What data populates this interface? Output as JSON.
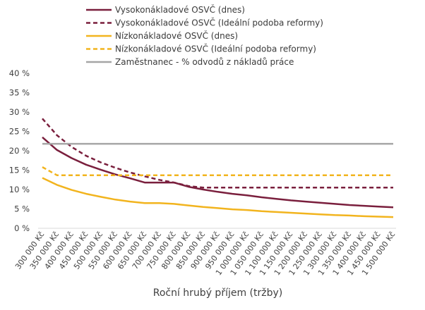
{
  "chart_data": {
    "type": "line",
    "title": "",
    "xlabel": "Roční hrubý příjem (tržby)",
    "ylabel": "",
    "ylim": [
      0,
      40
    ],
    "y_ticks": [
      "0 %",
      "5 %",
      "10 %",
      "15 %",
      "20 %",
      "25 %",
      "30 %",
      "35 %",
      "40 %"
    ],
    "grid": false,
    "legend_position": "top",
    "x": [
      "300 000 Kč",
      "350 000 Kč",
      "400 000 Kč",
      "450 000 Kč",
      "500 000 Kč",
      "550 000 Kč",
      "600 000 Kč",
      "650 000 Kč",
      "700 000 Kč",
      "750 000 Kč",
      "800 000 Kč",
      "850 000 Kč",
      "900 000 Kč",
      "950 000 Kč",
      "1 000 000 Kč",
      "1 050 000 Kč",
      "1 100 000 Kč",
      "1 150 000 Kč",
      "1 200 000 Kč",
      "1 250 000 Kč",
      "1 300 000 Kč",
      "1 350 000 Kč",
      "1 400 000 Kč",
      "1 450 000 Kč",
      "1 500 000 Kč"
    ],
    "series": [
      {
        "name": "Vysokonákladové OSVČ (dnes)",
        "color": "#7a1f3d",
        "dash": "solid",
        "values": [
          23.5,
          20.2,
          18.1,
          16.4,
          15.1,
          13.9,
          12.9,
          11.8,
          11.8,
          11.8,
          10.7,
          10.0,
          9.4,
          8.9,
          8.5,
          8.0,
          7.6,
          7.2,
          6.9,
          6.6,
          6.3,
          6.0,
          5.8,
          5.6,
          5.4
        ]
      },
      {
        "name": "Vysokonákladové OSVČ (Ideální podoba reformy)",
        "color": "#7a1f3d",
        "dash": "dashed",
        "values": [
          28.3,
          24.0,
          21.0,
          18.7,
          17.0,
          15.6,
          14.4,
          13.4,
          12.5,
          11.8,
          10.9,
          10.5,
          10.5,
          10.5,
          10.5,
          10.5,
          10.5,
          10.5,
          10.5,
          10.5,
          10.5,
          10.5,
          10.5,
          10.5,
          10.5
        ]
      },
      {
        "name": "Nízkonákladové OSVČ (dnes)",
        "color": "#f2b41e",
        "dash": "solid",
        "values": [
          13.0,
          11.2,
          9.9,
          8.9,
          8.1,
          7.4,
          6.9,
          6.5,
          6.5,
          6.3,
          5.9,
          5.5,
          5.2,
          4.9,
          4.7,
          4.4,
          4.2,
          4.0,
          3.8,
          3.6,
          3.4,
          3.3,
          3.1,
          3.0,
          2.9
        ]
      },
      {
        "name": "Nízkonákladové OSVČ (Ideální podoba reformy)",
        "color": "#f2b41e",
        "dash": "dashed",
        "values": [
          15.8,
          13.7,
          13.7,
          13.7,
          13.7,
          13.7,
          13.7,
          13.7,
          13.7,
          13.7,
          13.7,
          13.7,
          13.7,
          13.7,
          13.7,
          13.7,
          13.7,
          13.7,
          13.7,
          13.7,
          13.7,
          13.7,
          13.7,
          13.7,
          13.7
        ]
      },
      {
        "name": "Zaměstnanec - % odvodů z nákladů práce",
        "color": "#a6a6a6",
        "dash": "solid",
        "values": [
          21.8,
          21.8,
          21.8,
          21.8,
          21.8,
          21.8,
          21.8,
          21.8,
          21.8,
          21.8,
          21.8,
          21.8,
          21.8,
          21.8,
          21.8,
          21.8,
          21.8,
          21.8,
          21.8,
          21.8,
          21.8,
          21.8,
          21.8,
          21.8,
          21.8
        ]
      }
    ]
  }
}
